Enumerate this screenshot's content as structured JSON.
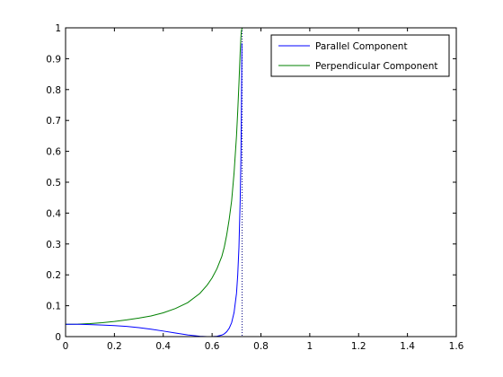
{
  "chart_data": {
    "type": "line",
    "xlim": [
      0,
      1.6
    ],
    "ylim": [
      0,
      1
    ],
    "x_ticks": [
      0,
      0.2,
      0.4,
      0.6,
      0.8,
      1,
      1.2,
      1.4,
      1.6
    ],
    "y_ticks": [
      0,
      0.1,
      0.2,
      0.3,
      0.4,
      0.5,
      0.6,
      0.7,
      0.8,
      0.9,
      1
    ],
    "x_tick_labels": [
      "0",
      "0.2",
      "0.4",
      "0.6",
      "0.8",
      "1",
      "1.2",
      "1.4",
      "1.6"
    ],
    "y_tick_labels": [
      "0",
      "0.1",
      "0.2",
      "0.3",
      "0.4",
      "0.5",
      "0.6",
      "0.7",
      "0.8",
      "0.9",
      "1"
    ],
    "grid": false,
    "legend_position": "top-right",
    "vertical_reference_line": {
      "x": 0.723,
      "style": "dotted",
      "color": "#000080"
    },
    "series": [
      {
        "name": "Parallel Component",
        "color": "#0000ff",
        "x": [
          0,
          0.05,
          0.1,
          0.15,
          0.2,
          0.25,
          0.3,
          0.35,
          0.4,
          0.45,
          0.5,
          0.55,
          0.58,
          0.6,
          0.62,
          0.64,
          0.65,
          0.66,
          0.67,
          0.68,
          0.69,
          0.7,
          0.705,
          0.71,
          0.715,
          0.718,
          0.72,
          0.722
        ],
        "y": [
          0.04,
          0.0398,
          0.039,
          0.0375,
          0.0355,
          0.033,
          0.029,
          0.024,
          0.018,
          0.0115,
          0.0055,
          0.0012,
          0.0001,
          0.0,
          0.001,
          0.005,
          0.009,
          0.016,
          0.027,
          0.045,
          0.078,
          0.14,
          0.2,
          0.29,
          0.44,
          0.58,
          0.72,
          0.95
        ]
      },
      {
        "name": "Perpendicular Component",
        "color": "#008000",
        "x": [
          0,
          0.05,
          0.1,
          0.15,
          0.2,
          0.25,
          0.3,
          0.35,
          0.4,
          0.45,
          0.5,
          0.55,
          0.58,
          0.6,
          0.62,
          0.64,
          0.65,
          0.66,
          0.67,
          0.68,
          0.69,
          0.7,
          0.705,
          0.71,
          0.715,
          0.718,
          0.72,
          0.723
        ],
        "y": [
          0.04,
          0.0405,
          0.042,
          0.045,
          0.049,
          0.054,
          0.06,
          0.067,
          0.077,
          0.091,
          0.11,
          0.14,
          0.167,
          0.19,
          0.22,
          0.26,
          0.29,
          0.33,
          0.38,
          0.44,
          0.53,
          0.65,
          0.73,
          0.82,
          0.92,
          0.97,
          0.99,
          1.0
        ]
      }
    ]
  }
}
